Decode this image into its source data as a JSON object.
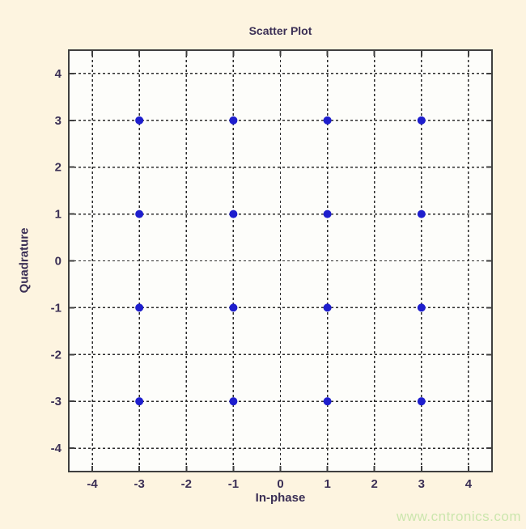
{
  "page": {
    "watermark": "www.cntronics.com"
  },
  "chart_data": {
    "type": "scatter",
    "title": "Scatter Plot",
    "xlabel": "In-phase",
    "ylabel": "Quadrature",
    "xlim": [
      -4.5,
      4.5
    ],
    "ylim": [
      -4.5,
      4.5
    ],
    "xticks": [
      -4,
      -3,
      -2,
      -1,
      0,
      1,
      2,
      3,
      4
    ],
    "yticks": [
      -4,
      -3,
      -2,
      -1,
      0,
      1,
      2,
      3,
      4
    ],
    "grid": "dashed",
    "legend": "none",
    "points": [
      [
        -3,
        3
      ],
      [
        -1,
        3
      ],
      [
        1,
        3
      ],
      [
        3,
        3
      ],
      [
        -3,
        1
      ],
      [
        -1,
        1
      ],
      [
        1,
        1
      ],
      [
        3,
        1
      ],
      [
        -3,
        -1
      ],
      [
        -1,
        -1
      ],
      [
        1,
        -1
      ],
      [
        3,
        -1
      ],
      [
        -3,
        -3
      ],
      [
        -1,
        -3
      ],
      [
        1,
        -3
      ],
      [
        3,
        -3
      ]
    ],
    "marker": {
      "shape": "circle",
      "radius": 5,
      "color": "#1e1ecd"
    },
    "colors": {
      "page_bg": "#fdf4e0",
      "plot_bg": "#fdfdfa",
      "grid": "#2b2b2b",
      "border": "#3f3f3f",
      "text": "#3b2f55",
      "watermark": "#cbe6ad"
    }
  }
}
